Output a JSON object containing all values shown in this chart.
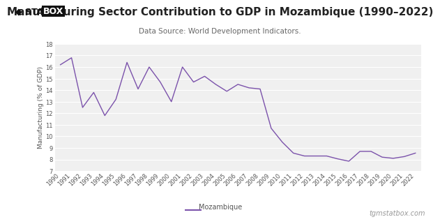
{
  "title": "Manufacturing Sector Contribution to GDP in Mozambique (1990–2022)",
  "subtitle": "Data Source: World Development Indicators.",
  "ylabel": "Manufacturing (% of GDP)",
  "watermark": "tgmstatbox.com",
  "legend_label": "Mozambique",
  "years": [
    1990,
    1991,
    1992,
    1993,
    1994,
    1995,
    1996,
    1997,
    1998,
    1999,
    2000,
    2001,
    2002,
    2003,
    2004,
    2005,
    2006,
    2007,
    2008,
    2009,
    2010,
    2011,
    2012,
    2013,
    2014,
    2015,
    2016,
    2017,
    2018,
    2019,
    2020,
    2021,
    2022
  ],
  "values": [
    16.2,
    16.8,
    12.5,
    13.8,
    11.8,
    13.2,
    16.4,
    14.1,
    16.0,
    14.7,
    13.0,
    16.0,
    14.7,
    15.2,
    14.5,
    13.9,
    14.5,
    14.2,
    14.1,
    10.7,
    9.5,
    8.55,
    8.3,
    8.3,
    8.3,
    8.05,
    7.85,
    8.7,
    8.7,
    8.2,
    8.1,
    8.25,
    8.55
  ],
  "line_color": "#7b52ab",
  "bg_color": "#ffffff",
  "plot_bg_color": "#f0f0f0",
  "grid_color": "#ffffff",
  "ylim": [
    7,
    18
  ],
  "yticks": [
    7,
    8,
    9,
    10,
    11,
    12,
    13,
    14,
    15,
    16,
    17,
    18
  ],
  "title_fontsize": 11,
  "subtitle_fontsize": 7.5,
  "ylabel_fontsize": 6.5,
  "tick_fontsize": 6,
  "legend_fontsize": 7,
  "watermark_fontsize": 7,
  "title_color": "#222222",
  "subtitle_color": "#666666",
  "tick_color": "#555555",
  "ylabel_color": "#555555",
  "watermark_color": "#999999"
}
